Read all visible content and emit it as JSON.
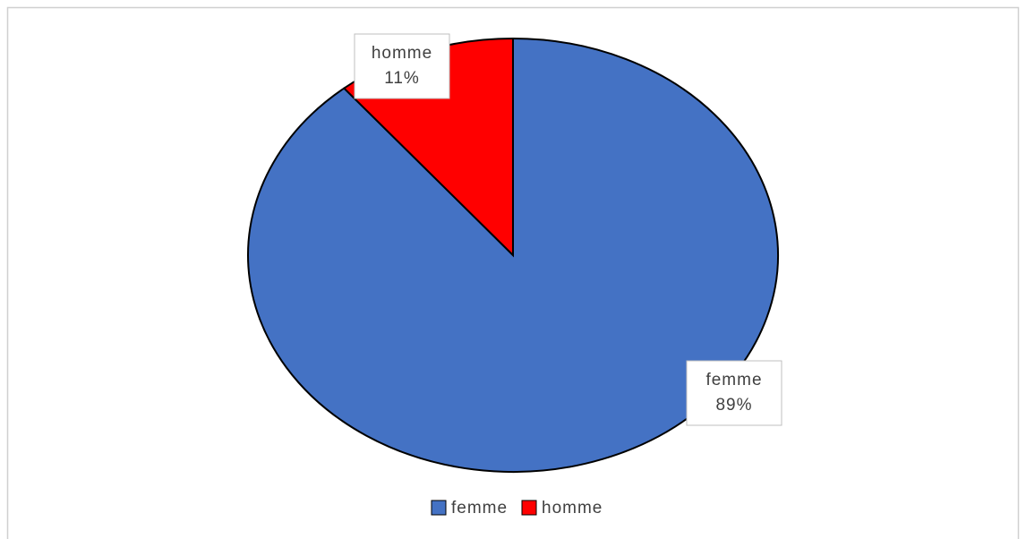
{
  "chart_data": {
    "type": "pie",
    "categories": [
      "femme",
      "homme"
    ],
    "values": [
      89,
      11
    ],
    "value_labels": [
      "89%",
      "11%"
    ],
    "colors": [
      "#4472c4",
      "#ff0000"
    ],
    "legend": "bottom"
  }
}
